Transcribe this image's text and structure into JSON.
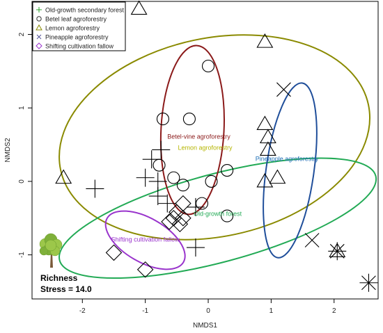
{
  "chart_data": {
    "type": "scatter",
    "xlabel": "NMDS1",
    "ylabel": "NMDS2",
    "xlim": [
      -2.8,
      2.7
    ],
    "ylim": [
      -1.6,
      2.45
    ],
    "x_ticks": [
      -2,
      -1,
      0,
      1,
      2
    ],
    "y_ticks": [
      -1,
      0,
      1,
      2
    ],
    "grid": false,
    "legend_position": "top-left",
    "legend": [
      {
        "label": "Old-growth secondary forest",
        "symbol": "plus",
        "color": "#2ca02c"
      },
      {
        "label": "Betel leaf agroforestry",
        "symbol": "circle",
        "color": "#333333"
      },
      {
        "label": "Lemon  agroforestry",
        "symbol": "triangle",
        "color": "#8a8a00"
      },
      {
        "label": "Pineapple agroforestry",
        "symbol": "cross",
        "color": "#555599"
      },
      {
        "label": "Shifting  cultivation fallow",
        "symbol": "diamond",
        "color": "#9933cc"
      }
    ],
    "series": [
      {
        "symbol": "plus",
        "points": [
          [
            -1.8,
            -0.1
          ],
          [
            -1.0,
            0.05
          ],
          [
            -0.8,
            0.0
          ],
          [
            -0.75,
            0.43
          ],
          [
            -0.9,
            0.3
          ],
          [
            -0.8,
            -0.2
          ],
          [
            -0.65,
            -0.3
          ],
          [
            -0.2,
            -0.35
          ],
          [
            -0.2,
            -0.9
          ],
          [
            2.05,
            -0.95
          ],
          [
            2.55,
            -1.38
          ]
        ]
      },
      {
        "symbol": "circle",
        "points": [
          [
            -0.72,
            0.85
          ],
          [
            -0.3,
            0.85
          ],
          [
            0.0,
            1.57
          ],
          [
            -0.78,
            0.22
          ],
          [
            -0.55,
            0.05
          ],
          [
            0.3,
            0.15
          ],
          [
            -0.4,
            -0.05
          ],
          [
            -0.1,
            -0.3
          ],
          [
            0.3,
            -0.47
          ],
          [
            0.05,
            0.0
          ]
        ]
      },
      {
        "symbol": "triangle",
        "points": [
          [
            -1.1,
            2.35
          ],
          [
            0.9,
            1.9
          ],
          [
            -2.3,
            0.05
          ],
          [
            0.9,
            0.78
          ],
          [
            0.95,
            0.6
          ],
          [
            0.95,
            0.43
          ],
          [
            0.9,
            0.0
          ],
          [
            1.1,
            0.05
          ],
          [
            2.05,
            -0.95
          ]
        ]
      },
      {
        "symbol": "cross",
        "points": [
          [
            1.2,
            1.25
          ],
          [
            1.65,
            -0.8
          ],
          [
            2.05,
            -0.95
          ],
          [
            2.55,
            -1.38
          ]
        ]
      },
      {
        "symbol": "diamond",
        "points": [
          [
            -1.5,
            -0.97
          ],
          [
            -1.0,
            -1.2
          ],
          [
            -0.62,
            -0.55
          ],
          [
            -0.5,
            -0.42
          ],
          [
            -0.45,
            -0.58
          ],
          [
            -0.55,
            -0.5
          ],
          [
            -0.4,
            -0.3
          ],
          [
            -0.4,
            -0.5
          ]
        ]
      }
    ],
    "ellipses": [
      {
        "name": "Lemon agroforestry",
        "color": "#8a8a00",
        "cx": 0.1,
        "cy": 0.6,
        "rx": 2.5,
        "ry": 1.35,
        "angle": -12
      },
      {
        "name": "Old-growth forest",
        "color": "#22aa55",
        "cx": 0.15,
        "cy": -0.5,
        "rx": 2.6,
        "ry": 0.6,
        "angle": -15
      },
      {
        "name": "Betel-vine agroforestry",
        "color": "#8b1a1a",
        "cx": -0.25,
        "cy": 0.7,
        "rx": 0.5,
        "ry": 1.15,
        "angle": 3
      },
      {
        "name": "Pineapple agroforestry",
        "color": "#1f4e9a",
        "cx": 1.3,
        "cy": 0.15,
        "rx": 0.38,
        "ry": 1.2,
        "angle": 8
      },
      {
        "name": "Shifting cultivation fallow",
        "color": "#9933cc",
        "cx": -1.0,
        "cy": -0.8,
        "rx": 0.7,
        "ry": 0.3,
        "angle": 30
      }
    ],
    "ellipse_labels": [
      {
        "text": "Betel-vine  agroforestry",
        "color": "#8b1a1a",
        "x": -0.15,
        "y": 0.58
      },
      {
        "text": "Lemon  agroforestry",
        "color": "#b5b500",
        "x": -0.05,
        "y": 0.43
      },
      {
        "text": "Pineapple  agroforestry",
        "color": "#1f6fb5",
        "x": 1.25,
        "y": 0.28
      },
      {
        "text": "Old-growth  forest",
        "color": "#22aa55",
        "x": 0.15,
        "y": -0.47
      },
      {
        "text": "Shifting  cultivation  fallow",
        "color": "#9933cc",
        "x": -1.0,
        "y": -0.82
      }
    ],
    "annotation_title": "Richness",
    "annotation_stress": "Stress = 14.0"
  }
}
